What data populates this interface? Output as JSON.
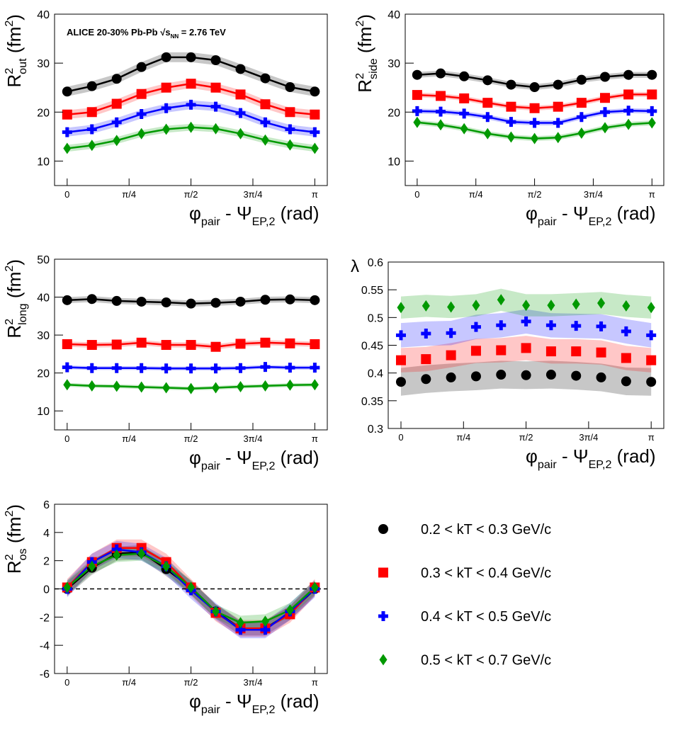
{
  "chart_data": [
    {
      "type": "scatter",
      "fit_lines": true,
      "annotation": [
        {
          "t": "ALICE 20-30% Pb-Pb √s"
        },
        {
          "t": "NN",
          "s": "sub"
        },
        {
          "t": " = 2.76 TeV"
        }
      ],
      "xlabel": [
        {
          "t": "φ"
        },
        {
          "t": "pair",
          "s": "sub"
        },
        {
          "t": " - Ψ"
        },
        {
          "t": "EP,2",
          "s": "sub"
        },
        {
          "t": " (rad)"
        }
      ],
      "ylabel": [
        {
          "t": "R"
        },
        {
          "t": "2",
          "s": "sup"
        },
        {
          "t": "out",
          "s": "sub"
        },
        {
          "t": " (fm"
        },
        {
          "t": "2",
          "s": "sup"
        },
        {
          "t": ")"
        }
      ],
      "x": [
        0,
        0.3142,
        0.6283,
        0.9425,
        1.2566,
        1.5708,
        1.885,
        2.1991,
        2.5133,
        2.8274,
        3.1416
      ],
      "xlim": [
        -0.16,
        3.3
      ],
      "xticks": [
        0,
        {
          "value": 0.7854,
          "label": "π/4"
        },
        {
          "value": 1.5708,
          "label": "π/2"
        },
        {
          "value": 2.3562,
          "label": "3π/4"
        },
        {
          "value": 3.1416,
          "label": "π"
        }
      ],
      "ylim": [
        5,
        40
      ],
      "yticks": [
        10,
        20,
        30,
        40
      ],
      "series": [
        {
          "name": "0.2 < kT < 0.3 GeV/c",
          "color": "#000000",
          "marker": "circle",
          "band": 1.0,
          "values": [
            24.2,
            25.3,
            26.8,
            29.2,
            31.2,
            31.2,
            30.6,
            28.8,
            26.9,
            25.1,
            24.2
          ]
        },
        {
          "name": "0.3 < kT < 0.4 GeV/c",
          "color": "#ff0000",
          "marker": "square",
          "band": 0.9,
          "values": [
            19.5,
            20.0,
            21.7,
            23.7,
            25.0,
            25.8,
            25.0,
            23.6,
            21.6,
            20.0,
            19.5
          ]
        },
        {
          "name": "0.4 < kT < 0.5 GeV/c",
          "color": "#0000ff",
          "marker": "cross",
          "band": 0.9,
          "values": [
            15.9,
            16.5,
            17.9,
            19.6,
            20.8,
            21.5,
            21.1,
            19.8,
            17.9,
            16.5,
            15.9
          ]
        },
        {
          "name": "0.5 < kT < 0.7 GeV/c",
          "color": "#009900",
          "marker": "diamond",
          "band": 0.7,
          "values": [
            12.6,
            13.2,
            14.2,
            15.6,
            16.5,
            16.9,
            16.6,
            15.6,
            14.3,
            13.3,
            12.6
          ]
        }
      ]
    },
    {
      "type": "scatter",
      "fit_lines": true,
      "xlabel": [
        {
          "t": "φ"
        },
        {
          "t": "pair",
          "s": "sub"
        },
        {
          "t": " - Ψ"
        },
        {
          "t": "EP,2",
          "s": "sub"
        },
        {
          "t": " (rad)"
        }
      ],
      "ylabel": [
        {
          "t": "R"
        },
        {
          "t": "2",
          "s": "sup"
        },
        {
          "t": "side",
          "s": "sub"
        },
        {
          "t": " (fm"
        },
        {
          "t": "2",
          "s": "sup"
        },
        {
          "t": ")"
        }
      ],
      "x": [
        0,
        0.3142,
        0.6283,
        0.9425,
        1.2566,
        1.5708,
        1.885,
        2.1991,
        2.5133,
        2.8274,
        3.1416
      ],
      "xlim": [
        -0.16,
        3.3
      ],
      "xticks": [
        0,
        {
          "value": 0.7854,
          "label": "π/4"
        },
        {
          "value": 1.5708,
          "label": "π/2"
        },
        {
          "value": 2.3562,
          "label": "3π/4"
        },
        {
          "value": 3.1416,
          "label": "π"
        }
      ],
      "ylim": [
        5,
        40
      ],
      "yticks": [
        10,
        20,
        30,
        40
      ],
      "series": [
        {
          "color": "#000000",
          "marker": "circle",
          "band": 0.6,
          "values": [
            27.6,
            27.9,
            27.3,
            26.5,
            25.6,
            25.1,
            25.6,
            26.6,
            27.2,
            27.6,
            27.6
          ]
        },
        {
          "color": "#ff0000",
          "marker": "square",
          "band": 0.5,
          "values": [
            23.5,
            23.3,
            22.8,
            21.9,
            21.1,
            20.8,
            21.1,
            21.9,
            22.9,
            23.6,
            23.6
          ]
        },
        {
          "color": "#0000ff",
          "marker": "cross",
          "band": 0.5,
          "values": [
            20.2,
            20.1,
            19.7,
            19.0,
            18.0,
            17.8,
            17.8,
            19.0,
            20.0,
            20.3,
            20.2
          ]
        },
        {
          "color": "#009900",
          "marker": "diamond",
          "band": 0.5,
          "values": [
            17.9,
            17.4,
            16.6,
            15.6,
            14.9,
            14.6,
            14.8,
            15.7,
            16.8,
            17.5,
            17.8
          ]
        }
      ]
    },
    {
      "type": "scatter",
      "fit_lines": true,
      "xlabel": [
        {
          "t": "φ"
        },
        {
          "t": "pair",
          "s": "sub"
        },
        {
          "t": " - Ψ"
        },
        {
          "t": "EP,2",
          "s": "sub"
        },
        {
          "t": " (rad)"
        }
      ],
      "ylabel": [
        {
          "t": "R"
        },
        {
          "t": "2",
          "s": "sup"
        },
        {
          "t": "long",
          "s": "sub"
        },
        {
          "t": " (fm"
        },
        {
          "t": "2",
          "s": "sup"
        },
        {
          "t": ")"
        }
      ],
      "x": [
        0,
        0.3142,
        0.6283,
        0.9425,
        1.2566,
        1.5708,
        1.885,
        2.1991,
        2.5133,
        2.8274,
        3.1416
      ],
      "xlim": [
        -0.16,
        3.3
      ],
      "xticks": [
        0,
        {
          "value": 0.7854,
          "label": "π/4"
        },
        {
          "value": 1.5708,
          "label": "π/2"
        },
        {
          "value": 2.3562,
          "label": "3π/4"
        },
        {
          "value": 3.1416,
          "label": "π"
        }
      ],
      "ylim": [
        5,
        50
      ],
      "yticks": [
        10,
        20,
        30,
        40,
        50
      ],
      "series": [
        {
          "color": "#000000",
          "marker": "circle",
          "band": 0.8,
          "values": [
            39.2,
            39.5,
            39.0,
            38.8,
            38.6,
            38.3,
            38.5,
            38.8,
            39.3,
            39.4,
            39.2
          ]
        },
        {
          "color": "#ff0000",
          "marker": "square",
          "band": 0.7,
          "values": [
            27.6,
            27.4,
            27.5,
            28.0,
            27.4,
            27.4,
            26.9,
            27.7,
            28.0,
            27.8,
            27.6
          ]
        },
        {
          "color": "#0000ff",
          "marker": "cross",
          "band": 0.5,
          "values": [
            21.5,
            21.3,
            21.3,
            21.3,
            21.2,
            21.2,
            21.2,
            21.3,
            21.6,
            21.4,
            21.4
          ]
        },
        {
          "color": "#009900",
          "marker": "diamond",
          "band": 0.5,
          "values": [
            16.9,
            16.6,
            16.5,
            16.3,
            16.1,
            15.9,
            16.1,
            16.4,
            16.6,
            16.8,
            16.9
          ]
        }
      ]
    },
    {
      "type": "scatter",
      "fit_lines": false,
      "xlabel": [
        {
          "t": "φ"
        },
        {
          "t": "pair",
          "s": "sub"
        },
        {
          "t": " - Ψ"
        },
        {
          "t": "EP,2",
          "s": "sub"
        },
        {
          "t": " (rad)"
        }
      ],
      "ylabel": [
        {
          "t": "λ"
        }
      ],
      "x": [
        0,
        0.3142,
        0.6283,
        0.9425,
        1.2566,
        1.5708,
        1.885,
        2.1991,
        2.5133,
        2.8274,
        3.1416
      ],
      "xlim": [
        -0.16,
        3.3
      ],
      "xticks": [
        0,
        {
          "value": 0.7854,
          "label": "π/4"
        },
        {
          "value": 1.5708,
          "label": "π/2"
        },
        {
          "value": 2.3562,
          "label": "3π/4"
        },
        {
          "value": 3.1416,
          "label": "π"
        }
      ],
      "ylim": [
        0.3,
        0.6
      ],
      "yticks": [
        0.3,
        0.35,
        0.4,
        0.45,
        0.5,
        0.55,
        0.6
      ],
      "series": [
        {
          "color": "#000000",
          "marker": "circle",
          "band": 0.025,
          "values": [
            0.384,
            0.389,
            0.392,
            0.394,
            0.397,
            0.396,
            0.397,
            0.395,
            0.392,
            0.385,
            0.384
          ]
        },
        {
          "color": "#ff0000",
          "marker": "square",
          "band": 0.022,
          "values": [
            0.423,
            0.425,
            0.432,
            0.44,
            0.441,
            0.445,
            0.439,
            0.439,
            0.437,
            0.427,
            0.423
          ]
        },
        {
          "color": "#0000ff",
          "marker": "cross",
          "band": 0.022,
          "values": [
            0.468,
            0.471,
            0.472,
            0.483,
            0.486,
            0.493,
            0.486,
            0.485,
            0.484,
            0.475,
            0.468
          ]
        },
        {
          "color": "#009900",
          "marker": "diamond",
          "band": 0.02,
          "values": [
            0.518,
            0.521,
            0.519,
            0.522,
            0.532,
            0.522,
            0.522,
            0.524,
            0.526,
            0.521,
            0.518
          ]
        }
      ]
    },
    {
      "type": "scatter",
      "fit_lines": true,
      "hline": 0,
      "xlabel": [
        {
          "t": "φ"
        },
        {
          "t": "pair",
          "s": "sub"
        },
        {
          "t": " - Ψ"
        },
        {
          "t": "EP,2",
          "s": "sub"
        },
        {
          "t": " (rad)"
        }
      ],
      "ylabel": [
        {
          "t": "R"
        },
        {
          "t": "2",
          "s": "sup"
        },
        {
          "t": "os",
          "s": "sub"
        },
        {
          "t": " (fm"
        },
        {
          "t": "2",
          "s": "sup"
        },
        {
          "t": ")"
        }
      ],
      "x": [
        0,
        0.3142,
        0.6283,
        0.9425,
        1.2566,
        1.5708,
        1.885,
        2.1991,
        2.5133,
        2.8274,
        3.1416
      ],
      "xlim": [
        -0.16,
        3.3
      ],
      "xticks": [
        0,
        {
          "value": 0.7854,
          "label": "π/4"
        },
        {
          "value": 1.5708,
          "label": "π/2"
        },
        {
          "value": 2.3562,
          "label": "3π/4"
        },
        {
          "value": 3.1416,
          "label": "π"
        }
      ],
      "ylim": [
        -6,
        6
      ],
      "yticks": [
        -6,
        -4,
        -2,
        0,
        2,
        4,
        6
      ],
      "series": [
        {
          "color": "#000000",
          "marker": "circle",
          "band": 0.5,
          "values": [
            0,
            1.5,
            2.5,
            2.6,
            1.4,
            0.1,
            -1.6,
            -2.8,
            -2.8,
            -1.7,
            0
          ]
        },
        {
          "color": "#ff0000",
          "marker": "square",
          "band": 0.6,
          "values": [
            0.1,
            1.9,
            2.9,
            2.9,
            1.9,
            0.1,
            -1.7,
            -2.8,
            -2.8,
            -1.8,
            0.1
          ]
        },
        {
          "color": "#0000ff",
          "marker": "cross",
          "band": 0.6,
          "values": [
            0,
            1.9,
            2.8,
            2.6,
            1.6,
            -0.1,
            -1.6,
            -2.9,
            -2.9,
            -1.6,
            0
          ]
        },
        {
          "color": "#009900",
          "marker": "diamond",
          "band": 0.5,
          "values": [
            0.1,
            1.6,
            2.4,
            2.5,
            1.6,
            0.1,
            -1.6,
            -2.4,
            -2.3,
            -1.5,
            0.1
          ]
        }
      ]
    }
  ]
}
